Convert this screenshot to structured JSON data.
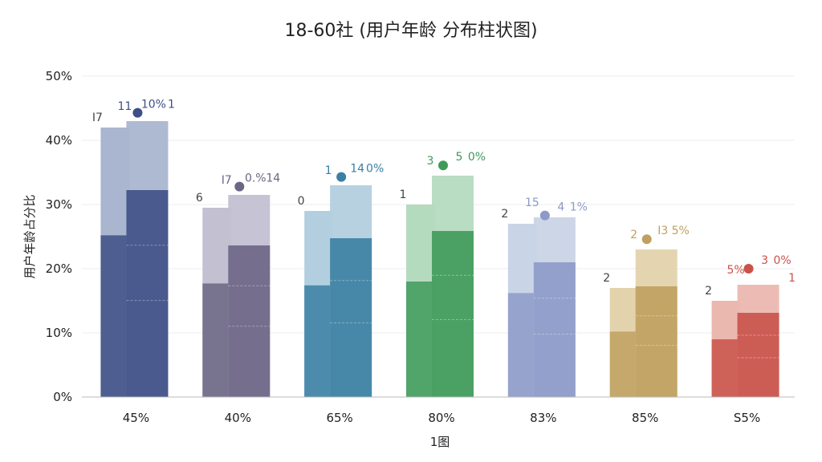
{
  "chart_data": {
    "type": "bar",
    "title": "18-60社 (用户年龄 分布柱状图)",
    "xlabel": "1图",
    "ylabel": "用户年龄占分比",
    "ylim": [
      0,
      50
    ],
    "y_ticks": [
      "0%",
      "10%",
      "20%",
      "30%",
      "40%",
      "50%"
    ],
    "categories": [
      "45%",
      "40%",
      "65%",
      "80%",
      "83%",
      "85%",
      "S5%"
    ],
    "grid": true,
    "groups": [
      {
        "color": "#3f4f86",
        "light": "#aab6d0",
        "back": 42,
        "front": 43,
        "marker": 44.3,
        "labels": [
          "I7",
          "11",
          "10%",
          "1"
        ]
      },
      {
        "color": "#6b6685",
        "light": "#c3c0d2",
        "back": 29.5,
        "front": 31.5,
        "marker": 32.8,
        "labels": [
          "6",
          "I7",
          "0.%",
          "14"
        ]
      },
      {
        "color": "#3b7fa3",
        "light": "#b3cfdf",
        "back": 29,
        "front": 33,
        "marker": 34.3,
        "labels": [
          "0",
          "1",
          "14",
          "0%"
        ]
      },
      {
        "color": "#3f9a5a",
        "light": "#b5dbbf",
        "back": 30,
        "front": 34.5,
        "marker": 36.1,
        "labels": [
          "1",
          "3",
          "5",
          "0%"
        ]
      },
      {
        "color": "#8d9ac8",
        "light": "#c9d4e6",
        "back": 27,
        "front": 28,
        "marker": 28.3,
        "labels": [
          "2",
          "15",
          "4",
          "1%"
        ]
      },
      {
        "color": "#c0a060",
        "light": "#e3d3ad",
        "back": 17,
        "front": 23,
        "marker": 24.6,
        "labels": [
          "2",
          "2",
          "I3",
          "5%"
        ]
      },
      {
        "color": "#c9524a",
        "light": "#ebb8b0",
        "back": 15,
        "front": 17.5,
        "marker": 20,
        "labels": [
          "2",
          "5%",
          "3",
          "0%",
          "1"
        ]
      }
    ]
  }
}
